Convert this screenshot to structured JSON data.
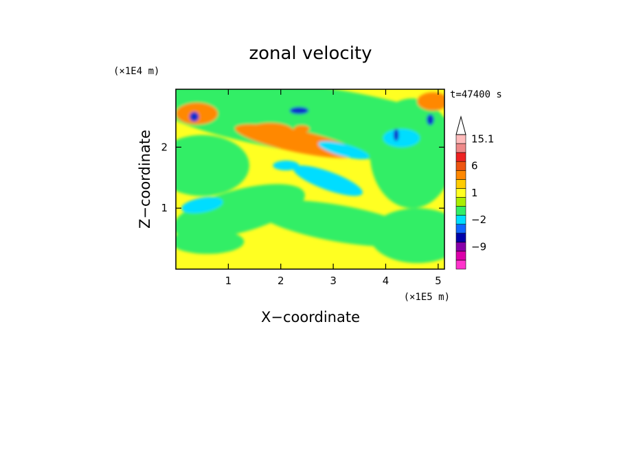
{
  "chart_data": {
    "type": "heatmap",
    "title": "zonal velocity",
    "xlabel": "X−coordinate",
    "ylabel": "Z−coordinate",
    "x_scale_label": "(×1E5 m)",
    "y_scale_label": "(×1E4 m)",
    "time_label": "t=47400 s",
    "xlim": [
      0,
      5.12
    ],
    "ylim": [
      0,
      2.95
    ],
    "xticks": [
      {
        "value": 1,
        "label": "1"
      },
      {
        "value": 2,
        "label": "2"
      },
      {
        "value": 3,
        "label": "3"
      },
      {
        "value": 4,
        "label": "4"
      },
      {
        "value": 5,
        "label": "5"
      }
    ],
    "yticks": [
      {
        "value": 1,
        "label": "1"
      },
      {
        "value": 2,
        "label": "2"
      }
    ],
    "colorbar": {
      "levels": [
        {
          "color": "#ff33cc"
        },
        {
          "color": "#dd00aa"
        },
        {
          "color": "#8800aa"
        },
        {
          "color": "#0000aa"
        },
        {
          "color": "#1166ff"
        },
        {
          "color": "#00ddff"
        },
        {
          "color": "#33ee66"
        },
        {
          "color": "#aaee00"
        },
        {
          "color": "#ffff22"
        },
        {
          "color": "#ffcc00"
        },
        {
          "color": "#ff8800"
        },
        {
          "color": "#ee5511"
        },
        {
          "color": "#ee2222"
        },
        {
          "color": "#ee8888"
        },
        {
          "color": "#ffbbbb"
        }
      ],
      "labels": [
        {
          "text": "15.1",
          "level": 14
        },
        {
          "text": "6",
          "level": 11
        },
        {
          "text": "1",
          "level": 8
        },
        {
          "text": "−2",
          "level": 5
        },
        {
          "text": "−9",
          "level": 2
        }
      ]
    },
    "dominant_colors": {
      "background_field": "#ffff22",
      "secondary_field": "#33ee66",
      "positive_band": "#ff8800",
      "negative_band": "#00ddff",
      "negative_core": "#1133cc"
    }
  }
}
